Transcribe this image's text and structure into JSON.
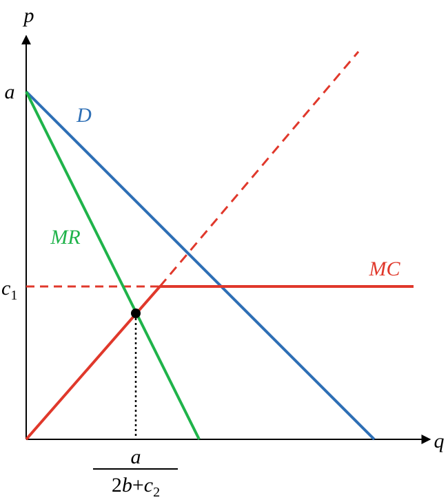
{
  "axes": {
    "y_label": "p",
    "x_label": "q"
  },
  "y_axis_labels": {
    "a": "a",
    "c1": {
      "main": "c",
      "sub": "1"
    }
  },
  "curve_labels": {
    "demand": "D",
    "marginal_revenue": "MR",
    "marginal_cost": "MC"
  },
  "x_axis_fraction": {
    "numerator": "a",
    "denominator": {
      "coef": "2",
      "var": "b",
      "plus": "+",
      "c": "c",
      "sub": "2"
    }
  }
}
